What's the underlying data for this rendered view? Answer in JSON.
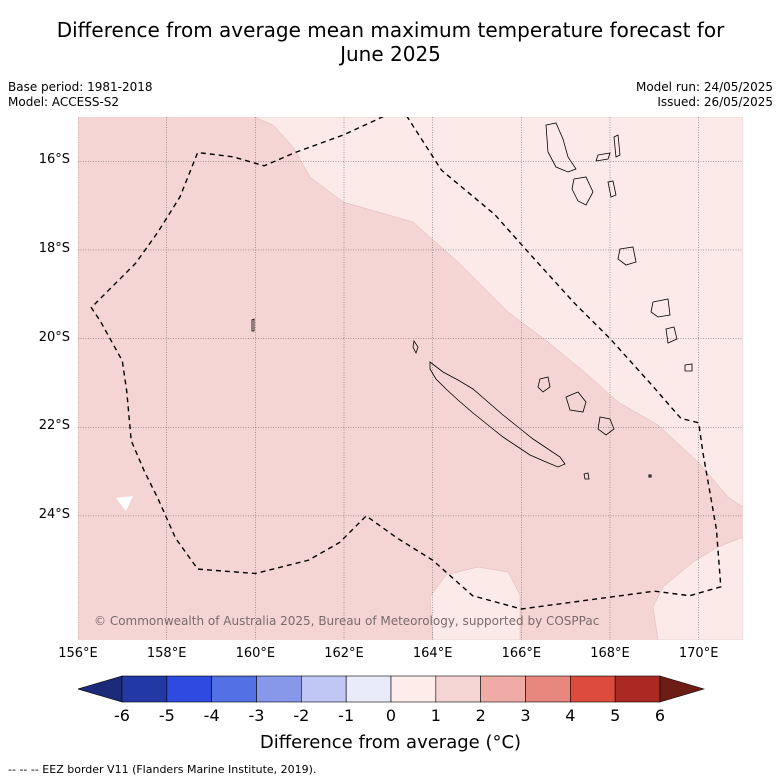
{
  "title_lines": [
    "Difference from average mean maximum temperature forecast for",
    "June 2025"
  ],
  "meta_left": [
    "Base period: 1981-2018",
    "Model: ACCESS-S2"
  ],
  "meta_right": [
    "Model run: 24/05/2025",
    "Issued: 26/05/2025"
  ],
  "map": {
    "lon_range": [
      156,
      171
    ],
    "lat_range": [
      -26.8,
      -15.0
    ],
    "lat_ticks": [
      {
        "value": -16,
        "label": "16°S"
      },
      {
        "value": -18,
        "label": "18°S"
      },
      {
        "value": -20,
        "label": "20°S"
      },
      {
        "value": -22,
        "label": "22°S"
      },
      {
        "value": -24,
        "label": "24°S"
      }
    ],
    "lon_ticks": [
      {
        "value": 156,
        "label": "156°E"
      },
      {
        "value": 158,
        "label": "158°E"
      },
      {
        "value": 160,
        "label": "160°E"
      },
      {
        "value": 162,
        "label": "162°E"
      },
      {
        "value": 164,
        "label": "164°E"
      },
      {
        "value": 166,
        "label": "166°E"
      },
      {
        "value": 168,
        "label": "168°E"
      },
      {
        "value": 170,
        "label": "170°E"
      }
    ],
    "anomaly_colors": {
      "one_to_two": "#f5d5d3",
      "zero_to_one": "#fbeae8",
      "gridline": "#555555"
    },
    "copyright": "© Commonwealth of Australia 2025, Bureau of Meteorology, supported by COSPPac",
    "eez_border": [
      [
        163.3,
        -14.8
      ],
      [
        164.2,
        -16.2
      ],
      [
        165.4,
        -17.2
      ],
      [
        166.2,
        -18.1
      ],
      [
        167.2,
        -19.2
      ],
      [
        168.0,
        -20.0
      ],
      [
        168.9,
        -21.0
      ],
      [
        169.6,
        -21.8
      ],
      [
        170.0,
        -21.9
      ],
      [
        170.1,
        -22.6
      ],
      [
        170.4,
        -24.3
      ],
      [
        170.5,
        -25.6
      ],
      [
        169.8,
        -25.8
      ],
      [
        169.0,
        -25.7
      ],
      [
        167.5,
        -25.9
      ],
      [
        166.0,
        -26.1
      ],
      [
        164.9,
        -25.8
      ],
      [
        164.0,
        -25.0
      ],
      [
        163.2,
        -24.5
      ],
      [
        162.5,
        -24.0
      ],
      [
        161.9,
        -24.6
      ],
      [
        161.2,
        -25.0
      ],
      [
        160.0,
        -25.3
      ],
      [
        158.7,
        -25.2
      ],
      [
        158.2,
        -24.5
      ],
      [
        157.8,
        -23.6
      ],
      [
        157.5,
        -23.0
      ],
      [
        157.2,
        -22.3
      ],
      [
        157.1,
        -21.2
      ],
      [
        157.0,
        -20.5
      ],
      [
        156.5,
        -19.6
      ],
      [
        156.3,
        -19.3
      ],
      [
        156.8,
        -18.8
      ],
      [
        157.3,
        -18.3
      ],
      [
        157.8,
        -17.6
      ],
      [
        158.3,
        -16.8
      ],
      [
        158.7,
        -15.8
      ],
      [
        159.5,
        -15.9
      ],
      [
        160.2,
        -16.1
      ],
      [
        160.9,
        -15.8
      ],
      [
        162.0,
        -15.4
      ],
      [
        163.3,
        -14.8
      ]
    ]
  },
  "colorbar": {
    "ticks": [
      "-6",
      "-5",
      "-4",
      "-3",
      "-2",
      "-1",
      "0",
      "1",
      "2",
      "3",
      "4",
      "5",
      "6"
    ],
    "colors": [
      "#2238a5",
      "#2e4ae1",
      "#5470e5",
      "#8797ea",
      "#c0c7f4",
      "#e8ebf9",
      "#fdecea",
      "#f5d5d3",
      "#f0aba6",
      "#e8877e",
      "#dc4b3c",
      "#ac2923"
    ],
    "under_color": "#1d2a7a",
    "over_color": "#6e1c16",
    "label": "Difference from average (°C)"
  },
  "footnote": "--  --  -- EEZ border V11 (Flanders Marine Institute, 2019)."
}
